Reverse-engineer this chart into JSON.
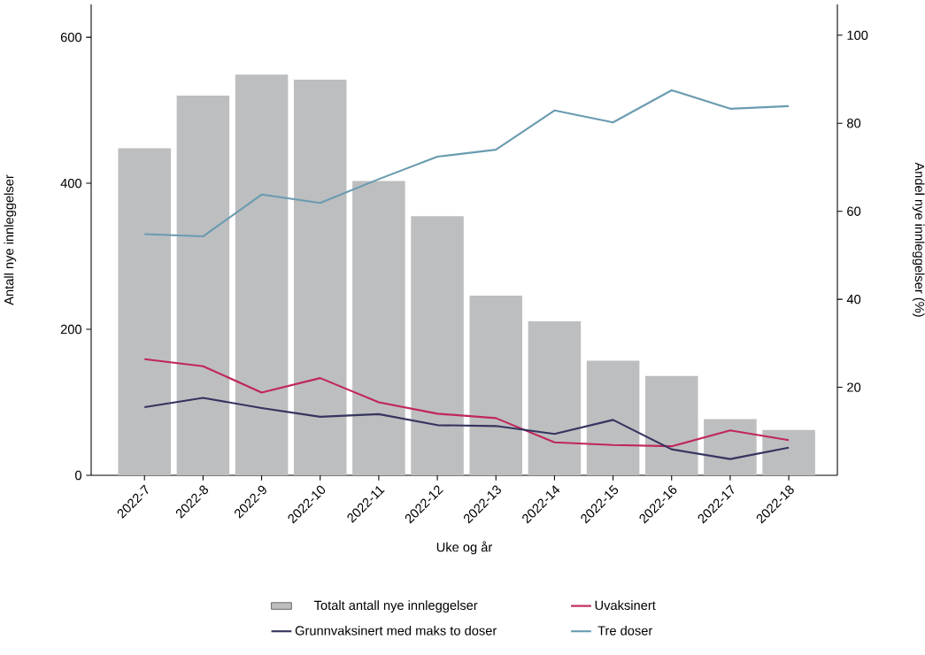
{
  "chart_data": {
    "type": "bar",
    "xlabel": "Uke og år",
    "ylabel": "Antall nye innleggelser",
    "y2label": "Andel nye innleggelser (%)",
    "categories": [
      "2022-7",
      "2022-8",
      "2022-9",
      "2022-10",
      "2022-11",
      "2022-12",
      "2022-13",
      "2022-14",
      "2022-15",
      "2022-16",
      "2022-17",
      "2022-18"
    ],
    "series": [
      {
        "name": "Totalt antall nye innleggelser",
        "color": "#bdbec0",
        "values": [
          448,
          520,
          549,
          542,
          403,
          355,
          246,
          211,
          157,
          136,
          77,
          62
        ]
      },
      {
        "name": "Uvaksinert",
        "type": "line",
        "axis": "y2",
        "color": "#c0265a",
        "values": [
          26.4,
          24.8,
          18.8,
          22.1,
          16.6,
          14.0,
          13.0,
          7.5,
          6.9,
          6.6,
          10.2,
          8.0
        ]
      },
      {
        "name": "Grunnvaksinert med maks to doser",
        "type": "line",
        "axis": "y2",
        "color": "#34345e",
        "values": [
          15.5,
          17.6,
          15.3,
          13.3,
          13.9,
          11.4,
          11.2,
          9.4,
          12.6,
          5.9,
          3.7,
          6.3
        ]
      },
      {
        "name": "Tre doser",
        "type": "line",
        "axis": "y2",
        "color": "#6a9bb0",
        "values": [
          54.8,
          54.3,
          63.8,
          61.9,
          67.3,
          72.4,
          74.0,
          82.9,
          80.2,
          87.5,
          83.3,
          83.9
        ]
      }
    ],
    "ylim": [
      0,
      645
    ],
    "yticks": [
      0,
      200,
      400,
      600
    ],
    "y2lim": [
      0,
      107
    ],
    "y2ticks": [
      20,
      40,
      60,
      80,
      100
    ],
    "legend": "bottom"
  }
}
